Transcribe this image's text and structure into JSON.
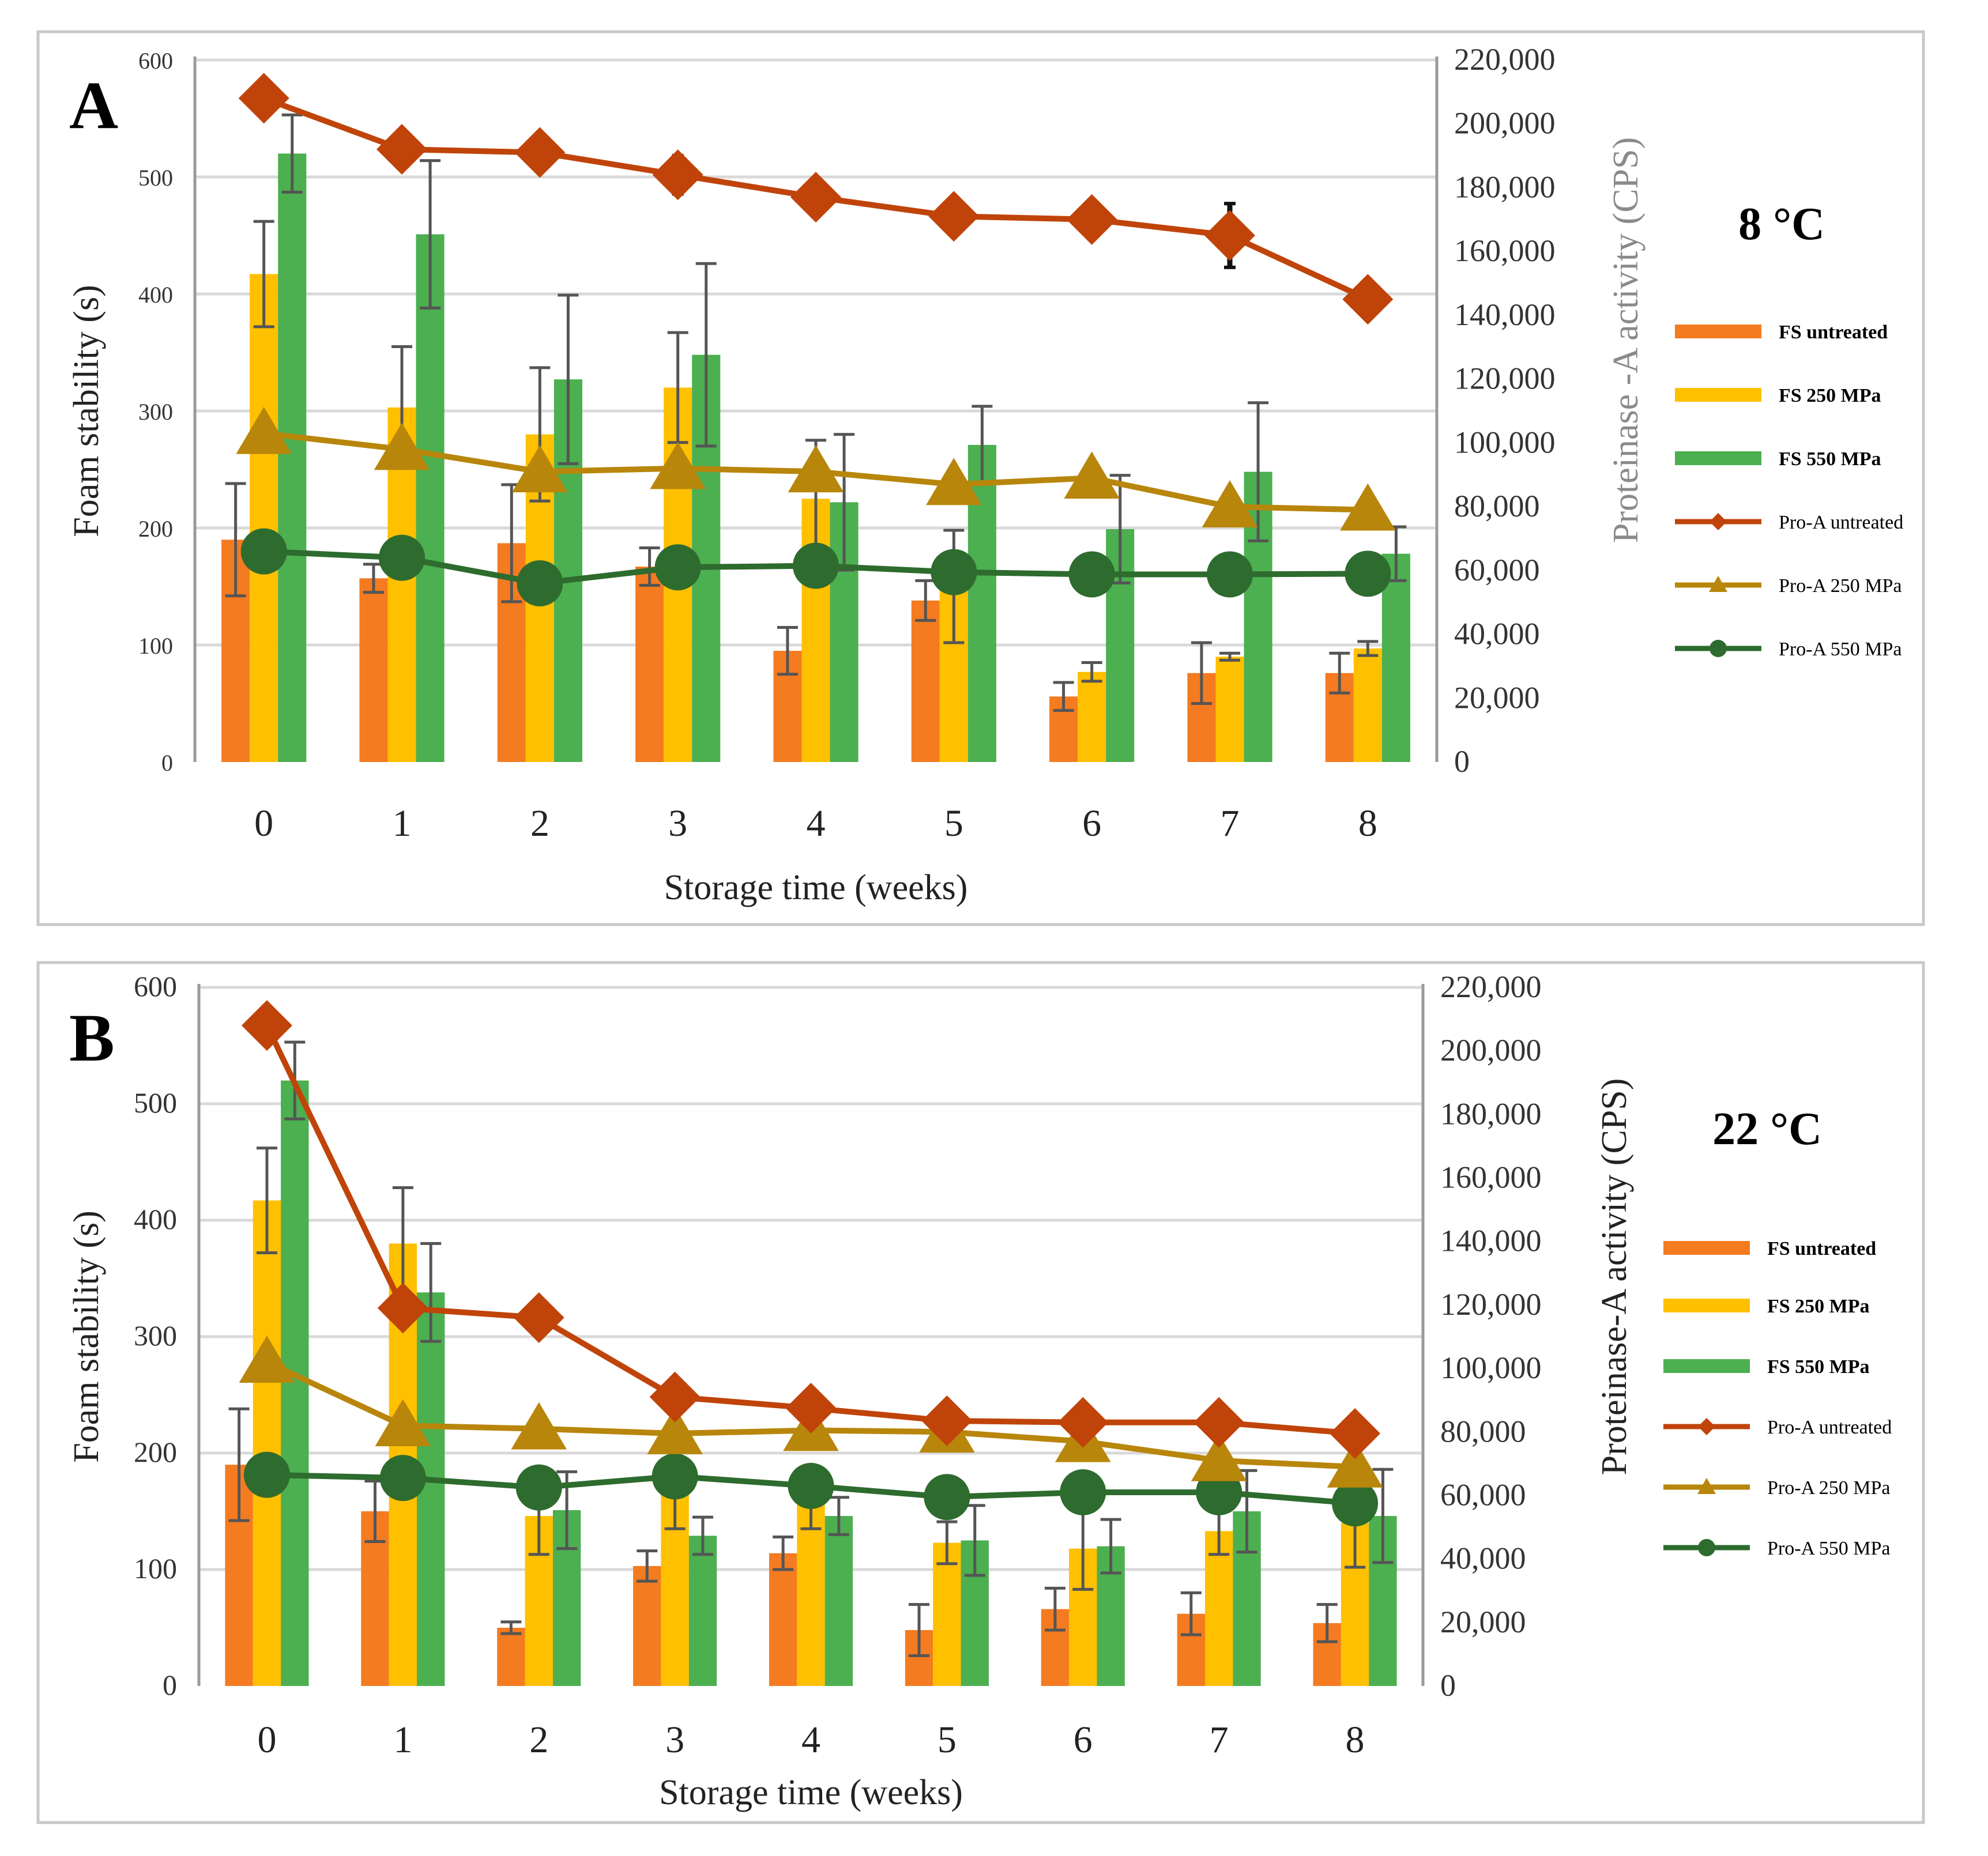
{
  "chart_data": [
    {
      "panel_letter": "A",
      "temperature_label": "8 °C",
      "type": "bar",
      "xlabel": "Storage time (weeks)",
      "ylabel": "Foam stability (s)",
      "y2label": "Proteinase -A activity (CPS)",
      "categories": [
        "0",
        "1",
        "2",
        "3",
        "4",
        "5",
        "6",
        "7",
        "8"
      ],
      "ylim": [
        0,
        600
      ],
      "y_ticks": [
        "0",
        "100",
        "200",
        "300",
        "400",
        "500",
        "600"
      ],
      "y2lim": [
        0,
        220000
      ],
      "y2_ticks": [
        "0",
        "20,000",
        "40,000",
        "60,000",
        "80,000",
        "100,000",
        "120,000",
        "140,000",
        "160,000",
        "180,000",
        "200,000",
        "220,000"
      ],
      "grid": true,
      "legend_position": "right",
      "series": [
        {
          "name": "FS untreated",
          "kind": "bar",
          "color": "#F47B20",
          "values": [
            190,
            157,
            187,
            167,
            95,
            138,
            56,
            76,
            76
          ],
          "errors": [
            48,
            12,
            50,
            16,
            20,
            17,
            12,
            26,
            17
          ]
        },
        {
          "name": "FS 250 MPa",
          "kind": "bar",
          "color": "#FFC000",
          "values": [
            417,
            303,
            280,
            320,
            225,
            150,
            77,
            90,
            97
          ],
          "errors": [
            45,
            52,
            57,
            47,
            50,
            48,
            8,
            3,
            6
          ]
        },
        {
          "name": "FS 550 MPa",
          "kind": "bar",
          "color": "#4CAF50",
          "values": [
            520,
            451,
            327,
            348,
            222,
            271,
            199,
            248,
            178
          ],
          "errors": [
            33,
            63,
            72,
            78,
            58,
            33,
            46,
            59,
            23
          ]
        },
        {
          "name": "Pro-A untreated",
          "kind": "line",
          "marker": "diamond",
          "color": "#C0440A",
          "values": [
            208000,
            192000,
            191000,
            184000,
            177000,
            171000,
            170000,
            165000,
            145000
          ],
          "errors": [
            0,
            0,
            0,
            6000,
            0,
            0,
            0,
            10000,
            0
          ]
        },
        {
          "name": "Pro-A 250 MPa",
          "kind": "line",
          "marker": "triangle",
          "color": "#B8860B",
          "values": [
            103000,
            98000,
            91000,
            92000,
            91000,
            87000,
            89000,
            80000,
            79000
          ],
          "errors": [
            0,
            0,
            0,
            0,
            0,
            0,
            0,
            0,
            0
          ]
        },
        {
          "name": "Pro-A 550 MPa",
          "kind": "line",
          "marker": "circle",
          "color": "#2E6B2E",
          "values": [
            66000,
            64000,
            56000,
            61000,
            61500,
            59500,
            58800,
            58800,
            59000
          ],
          "errors": [
            0,
            0,
            0,
            0,
            0,
            0,
            0,
            0,
            0
          ]
        }
      ]
    },
    {
      "panel_letter": "B",
      "temperature_label": "22 °C",
      "type": "bar",
      "xlabel": "Storage time (weeks)",
      "ylabel": "Foam stability (s)",
      "y2label": "Proteinase-A activity (CPS)",
      "categories": [
        "0",
        "1",
        "2",
        "3",
        "4",
        "5",
        "6",
        "7",
        "8"
      ],
      "ylim": [
        0,
        600
      ],
      "y_ticks": [
        "0",
        "100",
        "200",
        "300",
        "400",
        "500",
        "600"
      ],
      "y2lim": [
        0,
        220000
      ],
      "y2_ticks": [
        "0",
        "20,000",
        "40,000",
        "60,000",
        "80,000",
        "100,000",
        "120,000",
        "140,000",
        "160,000",
        "180,000",
        "200,000",
        "220,000"
      ],
      "grid": true,
      "legend_position": "right",
      "series": [
        {
          "name": "FS untreated",
          "kind": "bar",
          "color": "#F47B20",
          "values": [
            190,
            150,
            50,
            103,
            114,
            48,
            66,
            62,
            54
          ],
          "errors": [
            48,
            26,
            5,
            13,
            14,
            22,
            18,
            18,
            16
          ]
        },
        {
          "name": "FS 250 MPa",
          "kind": "bar",
          "color": "#FFC000",
          "values": [
            417,
            380,
            146,
            170,
            160,
            123,
            118,
            133,
            140
          ],
          "errors": [
            45,
            48,
            33,
            35,
            25,
            18,
            35,
            20,
            38
          ]
        },
        {
          "name": "FS 550 MPa",
          "kind": "bar",
          "color": "#4CAF50",
          "values": [
            520,
            338,
            151,
            129,
            146,
            125,
            120,
            150,
            146
          ],
          "errors": [
            33,
            42,
            33,
            16,
            16,
            30,
            23,
            35,
            40
          ]
        },
        {
          "name": "Pro-A untreated",
          "kind": "line",
          "marker": "diamond",
          "color": "#C0440A",
          "values": [
            208000,
            119000,
            116000,
            91000,
            87500,
            83500,
            83000,
            83000,
            79500
          ],
          "errors": [
            0,
            0,
            0,
            0,
            0,
            0,
            0,
            0,
            0
          ]
        },
        {
          "name": "Pro-A 250 MPa",
          "kind": "line",
          "marker": "triangle",
          "color": "#B8860B",
          "values": [
            102000,
            82000,
            81000,
            79500,
            80500,
            80000,
            77000,
            71000,
            69000
          ],
          "errors": [
            0,
            0,
            0,
            0,
            0,
            0,
            0,
            0,
            0
          ]
        },
        {
          "name": "Pro-A 550 MPa",
          "kind": "line",
          "marker": "circle",
          "color": "#2E6B2E",
          "values": [
            66500,
            65500,
            62500,
            66000,
            63000,
            59500,
            61000,
            61000,
            57500
          ],
          "errors": [
            0,
            0,
            0,
            0,
            0,
            0,
            0,
            0,
            0
          ]
        }
      ]
    }
  ]
}
